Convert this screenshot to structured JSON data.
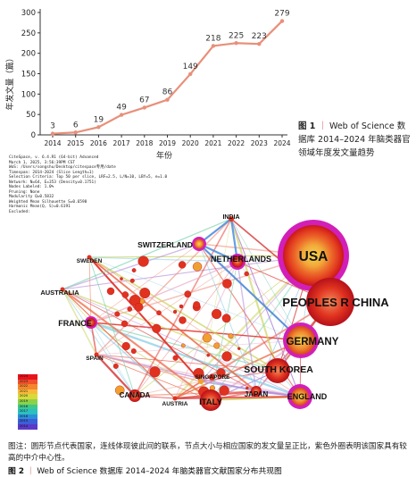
{
  "chart_data": {
    "type": "line",
    "x": [
      2014,
      2015,
      2016,
      2017,
      2018,
      2019,
      2020,
      2021,
      2022,
      2023,
      2024
    ],
    "values": [
      3,
      6,
      19,
      49,
      67,
      86,
      149,
      218,
      225,
      223,
      279
    ],
    "xlabel": "年份",
    "ylabel": "年发文量（篇）",
    "ylim": [
      0,
      300
    ],
    "yticks": [
      0,
      50,
      100,
      150,
      200,
      250,
      300
    ],
    "line_color": "#e88f7a",
    "grid": false
  },
  "figure1": {
    "label": "图 1",
    "source": "Web of Science 数据库 2014–2024 年脑类器官领域年度发文量趋势"
  },
  "citespace_meta": [
    "CiteSpace, v. 6.4.R1 (64-bit) Advanced",
    "March 1, 2025, 3:56:39PM CST",
    "WoS: /Users/songshu/Desktop/citespace专用/date",
    "Timespan: 2014-2024 (Slice Length=1)",
    "Selection Criteria: Top 50 per slice, LRF=2.5, L/N=10, LBY=5, e=1.0",
    "Network: N=64, E=353 (Density=0.1751)",
    "Nodes Labeled: 1.0%",
    "Pruning: None",
    "Modularity Q=0.5832",
    "Weighted Mean Silhouette S=0.6598",
    "Harmonic Mean(Q, S)=0.6191",
    "Excluded:"
  ],
  "legend_years": [
    "2024",
    "2023",
    "2022",
    "2021",
    "2020",
    "2019",
    "2018",
    "2017",
    "2016",
    "2015",
    "2014"
  ],
  "countries": {
    "usa": "USA",
    "china": "PEOPLES R CHINA",
    "germany": "GERMANY",
    "south_korea": "SOUTH KOREA",
    "england": "ENGLAND",
    "japan": "JAPAN",
    "italy": "ITALY",
    "austria": "AUSTRIA",
    "canada": "CANADA",
    "singapore": "SINGAPORE",
    "spain": "SPAIN",
    "france": "FRANCE",
    "australia": "AUSTRALIA",
    "sweden": "SWEDEN",
    "switzerland": "SWITZERLAND",
    "netherlands": "NETHERLANDS",
    "india": "INDIA"
  },
  "figure2": {
    "note": "图注：圆形节点代表国家，连线体现彼此间的联系，节点大小与相应国家的发文量呈正比，紫色外圈表明该国家具有较高的中介中心性。",
    "label": "图 2",
    "title": "Web of Science 数据库 2014–2024 年脑类器官文献国家分布共现图"
  }
}
